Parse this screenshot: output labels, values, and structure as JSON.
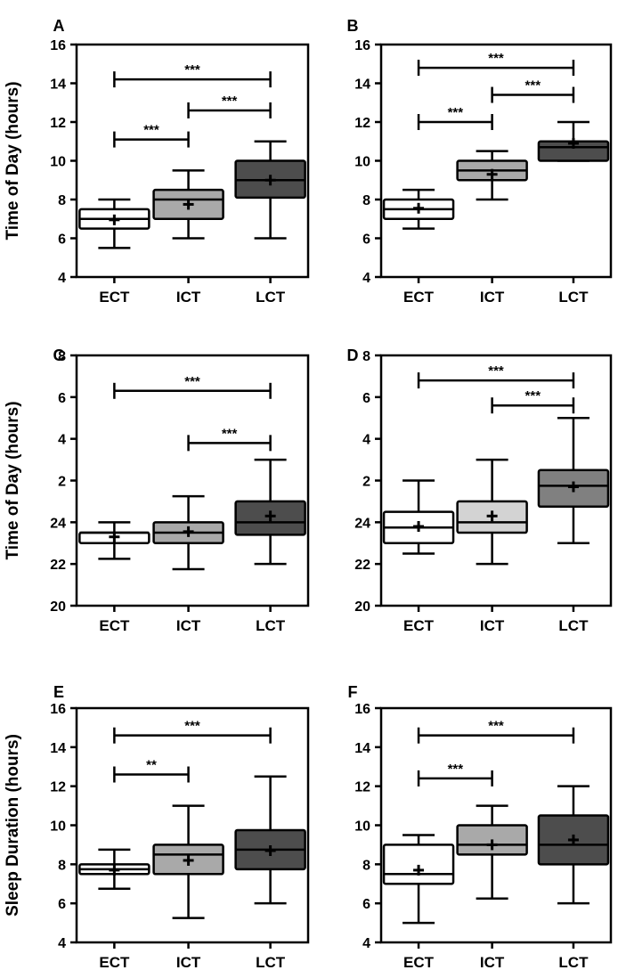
{
  "chart_data": [
    {
      "panel": "A",
      "type": "box",
      "ylabel": "Time of Day (hours)",
      "ylim": [
        4,
        16
      ],
      "yticks": [
        "4",
        "6",
        "8",
        "10",
        "12",
        "14",
        "16"
      ],
      "categories": [
        "ECT",
        "ICT",
        "LCT"
      ],
      "boxes": [
        {
          "min": 5.5,
          "q1": 6.5,
          "median": 7.0,
          "q3": 7.5,
          "max": 8.0,
          "mean": 6.95,
          "color": "#ffffff"
        },
        {
          "min": 6.0,
          "q1": 7.0,
          "median": 8.0,
          "q3": 8.5,
          "max": 9.5,
          "mean": 7.75,
          "color": "#a9a9a9"
        },
        {
          "min": 6.0,
          "q1": 8.1,
          "median": 9.0,
          "q3": 10.0,
          "max": 11.0,
          "mean": 9.0,
          "color": "#4d4d4d"
        }
      ],
      "significance": [
        {
          "from": 0,
          "to": 2,
          "y": 14.2,
          "label": "***"
        },
        {
          "from": 0,
          "to": 1,
          "y": 11.1,
          "label": "***"
        },
        {
          "from": 1,
          "to": 2,
          "y": 12.6,
          "label": "***"
        }
      ]
    },
    {
      "panel": "B",
      "type": "box",
      "ylabel": "",
      "ylim": [
        4,
        16
      ],
      "yticks": [
        "4",
        "6",
        "8",
        "10",
        "12",
        "14",
        "16"
      ],
      "categories": [
        "ECT",
        "ICT",
        "LCT"
      ],
      "boxes": [
        {
          "min": 6.5,
          "q1": 7.0,
          "median": 7.5,
          "q3": 8.0,
          "max": 8.5,
          "mean": 7.55,
          "color": "#ffffff"
        },
        {
          "min": 8.0,
          "q1": 9.0,
          "median": 9.5,
          "q3": 10.0,
          "max": 10.5,
          "mean": 9.3,
          "color": "#a9a9a9"
        },
        {
          "min": 10.0,
          "q1": 10.0,
          "median": 10.7,
          "q3": 11.0,
          "max": 12.0,
          "mean": 10.9,
          "color": "#4d4d4d"
        }
      ],
      "significance": [
        {
          "from": 0,
          "to": 2,
          "y": 14.8,
          "label": "***"
        },
        {
          "from": 0,
          "to": 1,
          "y": 12.0,
          "label": "***"
        },
        {
          "from": 1,
          "to": 2,
          "y": 13.4,
          "label": "***"
        }
      ]
    },
    {
      "panel": "C",
      "type": "box",
      "ylabel": "Time of Day (hours)",
      "ylim": [
        20,
        32
      ],
      "yticks": [
        "20",
        "22",
        "24",
        "2",
        "4",
        "6",
        "8"
      ],
      "categories": [
        "ECT",
        "ICT",
        "LCT"
      ],
      "boxes": [
        {
          "min": 22.25,
          "q1": 23.0,
          "median": 23.5,
          "q3": 23.5,
          "max": 24.0,
          "mean": 23.3,
          "color": "#ffffff"
        },
        {
          "min": 21.75,
          "q1": 23.0,
          "median": 23.5,
          "q3": 24.0,
          "max": 25.25,
          "mean": 23.55,
          "color": "#a9a9a9"
        },
        {
          "min": 22.0,
          "q1": 23.4,
          "median": 24.0,
          "q3": 25.0,
          "max": 27.0,
          "mean": 24.3,
          "color": "#4d4d4d"
        }
      ],
      "significance": [
        {
          "from": 0,
          "to": 2,
          "y": 30.3,
          "label": "***"
        },
        {
          "from": 1,
          "to": 2,
          "y": 27.8,
          "label": "***"
        }
      ]
    },
    {
      "panel": "D",
      "type": "box",
      "ylabel": "",
      "ylim": [
        20,
        32
      ],
      "yticks": [
        "20",
        "22",
        "24",
        "2",
        "4",
        "6",
        "8"
      ],
      "categories": [
        "ECT",
        "ICT",
        "LCT"
      ],
      "boxes": [
        {
          "min": 22.5,
          "q1": 23.0,
          "median": 23.75,
          "q3": 24.5,
          "max": 26.0,
          "mean": 23.8,
          "color": "#ffffff"
        },
        {
          "min": 22.0,
          "q1": 23.5,
          "median": 24.0,
          "q3": 25.0,
          "max": 27.0,
          "mean": 24.3,
          "color": "#d3d3d3"
        },
        {
          "min": 23.0,
          "q1": 24.75,
          "median": 25.75,
          "q3": 26.5,
          "max": 29.0,
          "mean": 25.7,
          "color": "#808080"
        }
      ],
      "significance": [
        {
          "from": 0,
          "to": 2,
          "y": 30.8,
          "label": "***"
        },
        {
          "from": 1,
          "to": 2,
          "y": 29.6,
          "label": "***"
        }
      ]
    },
    {
      "panel": "E",
      "type": "box",
      "ylabel": "Sleep Duration (hours)",
      "ylim": [
        4,
        16
      ],
      "yticks": [
        "4",
        "6",
        "8",
        "10",
        "12",
        "14",
        "16"
      ],
      "categories": [
        "ECT",
        "ICT",
        "LCT"
      ],
      "boxes": [
        {
          "min": 6.75,
          "q1": 7.5,
          "median": 7.75,
          "q3": 8.0,
          "max": 8.75,
          "mean": 7.7,
          "color": "#ffffff"
        },
        {
          "min": 5.25,
          "q1": 7.5,
          "median": 8.5,
          "q3": 9.0,
          "max": 11.0,
          "mean": 8.2,
          "color": "#a9a9a9"
        },
        {
          "min": 6.0,
          "q1": 7.75,
          "median": 8.75,
          "q3": 9.75,
          "max": 12.5,
          "mean": 8.7,
          "color": "#4d4d4d"
        }
      ],
      "significance": [
        {
          "from": 0,
          "to": 2,
          "y": 14.6,
          "label": "***"
        },
        {
          "from": 0,
          "to": 1,
          "y": 12.6,
          "label": "**"
        }
      ]
    },
    {
      "panel": "F",
      "type": "box",
      "ylabel": "",
      "ylim": [
        4,
        16
      ],
      "yticks": [
        "4",
        "6",
        "8",
        "10",
        "12",
        "14",
        "16"
      ],
      "categories": [
        "ECT",
        "ICT",
        "LCT"
      ],
      "boxes": [
        {
          "min": 5.0,
          "q1": 7.0,
          "median": 7.5,
          "q3": 9.0,
          "max": 9.5,
          "mean": 7.7,
          "color": "#ffffff"
        },
        {
          "min": 6.25,
          "q1": 8.5,
          "median": 9.0,
          "q3": 10.0,
          "max": 11.0,
          "mean": 9.0,
          "color": "#a9a9a9"
        },
        {
          "min": 6.0,
          "q1": 8.0,
          "median": 9.0,
          "q3": 10.5,
          "max": 12.0,
          "mean": 9.25,
          "color": "#4d4d4d"
        }
      ],
      "significance": [
        {
          "from": 0,
          "to": 2,
          "y": 14.6,
          "label": "***"
        },
        {
          "from": 0,
          "to": 1,
          "y": 12.4,
          "label": "***"
        }
      ]
    }
  ]
}
